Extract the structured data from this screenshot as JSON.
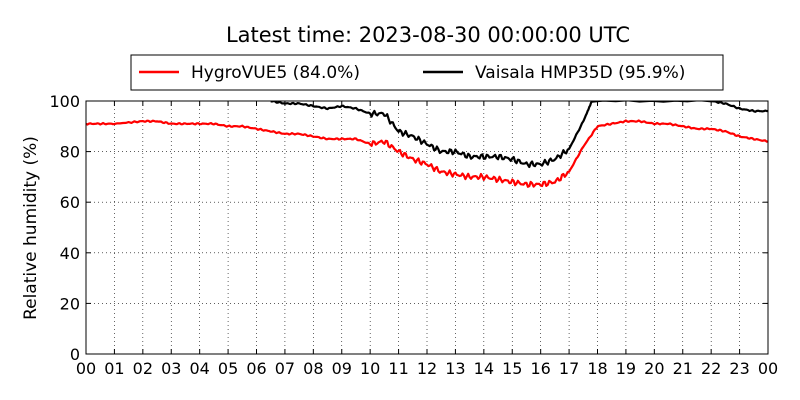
{
  "chart_data": {
    "type": "line",
    "title": "Latest time: 2023-08-30 00:00:00 UTC",
    "xlabel": "",
    "ylabel": "Relative humidity (%)",
    "xlim": [
      0,
      24
    ],
    "ylim": [
      0,
      100
    ],
    "x_tick_labels": [
      "00",
      "01",
      "02",
      "03",
      "04",
      "05",
      "06",
      "07",
      "08",
      "09",
      "10",
      "11",
      "12",
      "13",
      "14",
      "15",
      "16",
      "17",
      "18",
      "19",
      "20",
      "21",
      "22",
      "23",
      "00"
    ],
    "y_ticks": [
      0,
      20,
      40,
      60,
      80,
      100
    ],
    "grid": true,
    "legend_position": "top-center",
    "series": [
      {
        "name": "HygroVUE5 (84.0%)",
        "color": "#ff0000",
        "x": [
          0,
          0.5,
          1,
          2,
          2.5,
          3,
          3.5,
          4,
          4.5,
          5,
          5.5,
          6,
          6.5,
          7,
          7.5,
          8,
          8.5,
          9,
          9.5,
          10,
          10.5,
          11,
          11.5,
          12,
          12.5,
          13,
          13.5,
          14,
          14.5,
          15,
          15.5,
          16,
          16.5,
          17,
          17.5,
          18,
          18.5,
          19,
          19.5,
          20,
          20.5,
          21,
          21.5,
          22,
          22.5,
          23,
          23.5,
          24
        ],
        "y": [
          91,
          91,
          91,
          92,
          92,
          91,
          91,
          91,
          91,
          90,
          90,
          89,
          88,
          87,
          87,
          86,
          85,
          85,
          85,
          83,
          84,
          80,
          77,
          75,
          72,
          71,
          70,
          70,
          69,
          68,
          67,
          67,
          68,
          72,
          82,
          90,
          91,
          92,
          92,
          91,
          91,
          90,
          89,
          89,
          88,
          86,
          85,
          84
        ]
      },
      {
        "name": "Vaisala HMP35D (95.9%)",
        "color": "#000000",
        "x": [
          6.5,
          7,
          7.5,
          8,
          8.5,
          9,
          9.5,
          10,
          10.5,
          11,
          11.5,
          12,
          12.5,
          13,
          13.5,
          14,
          14.5,
          15,
          15.5,
          16,
          16.5,
          17,
          17.5,
          17.8,
          22,
          22.5,
          23,
          23.5,
          24
        ],
        "y": [
          100,
          99,
          99,
          98,
          97,
          98,
          97,
          95,
          95,
          88,
          86,
          83,
          80,
          80,
          78,
          78,
          78,
          77,
          75,
          75,
          77,
          81,
          92,
          100,
          100,
          99,
          97,
          96,
          96
        ]
      }
    ]
  }
}
